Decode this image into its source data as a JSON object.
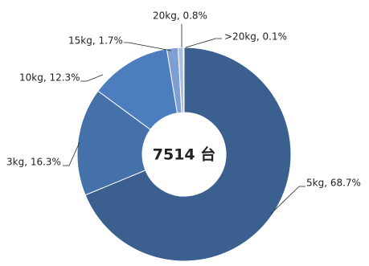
{
  "chart_data": {
    "type": "pie",
    "values": [
      68.7,
      16.3,
      12.3,
      1.7,
      0.8,
      0.1
    ],
    "value_labels": [
      "5kg, 68.7%",
      "3kg, 16.3%",
      "10kg, 12.3%",
      "15kg, 1.7%",
      "20kg, 0.8%",
      ">20kg, 0.1%"
    ],
    "colors": [
      "#3b5f8f",
      "#4471a9",
      "#4b7dbf",
      "#7d9fd1",
      "#a9bfe2",
      "#cad7ee"
    ],
    "center_label": "7514 台"
  }
}
